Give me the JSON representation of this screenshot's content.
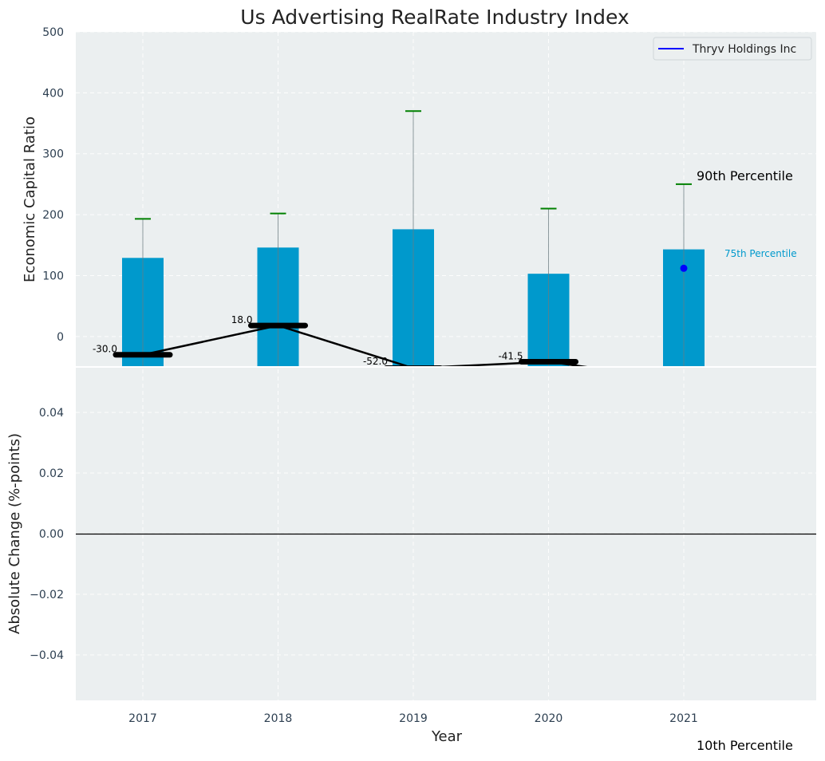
{
  "chart_data": {
    "type": "bar",
    "title": "Us Advertising RealRate Industry Index",
    "xlabel": "Year",
    "ylabel_top": "Economic Capital Ratio",
    "ylabel_bottom": "Absolute Change (%-points)",
    "categories": [
      "2017",
      "2018",
      "2019",
      "2020",
      "2021"
    ],
    "ylim_top": [
      -50,
      500
    ],
    "yticks_top": [
      "0",
      "100",
      "200",
      "300",
      "400",
      "500"
    ],
    "ylim_bottom": [
      -0.055,
      0.055
    ],
    "yticks_bottom": [
      "−0.04",
      "−0.02",
      "0.00",
      "0.02",
      "0.04"
    ],
    "grid": true,
    "legend": {
      "placement": "top-right",
      "entries": [
        "Thryv Holdings Inc"
      ]
    },
    "series": [
      {
        "kind": "bar",
        "label": "75th Percentile",
        "values": [
          129,
          146,
          176,
          103,
          143
        ]
      },
      {
        "kind": "error-top",
        "label": "90th Percentile",
        "values": [
          193,
          202,
          370,
          210,
          250
        ]
      },
      {
        "kind": "line",
        "name": "Thryv Holdings Inc",
        "values": [
          -30.0,
          18.0,
          -52.0,
          -41.5,
          null
        ],
        "data_labels": [
          "-30.0",
          "18.0",
          "-52.0",
          "-41.5",
          ""
        ]
      },
      {
        "kind": "point",
        "values": [
          null,
          null,
          null,
          null,
          112
        ]
      }
    ],
    "annotations": {
      "p90": "90th Percentile",
      "p75": "75th Percentile",
      "p10": "10th Percentile"
    },
    "colors": {
      "bar": "#0099cc",
      "whisker": "#008000",
      "line": "#000000",
      "legend_line": "#0000ff",
      "point": "#0000ff",
      "plot_bg": "#ebeff0"
    }
  }
}
